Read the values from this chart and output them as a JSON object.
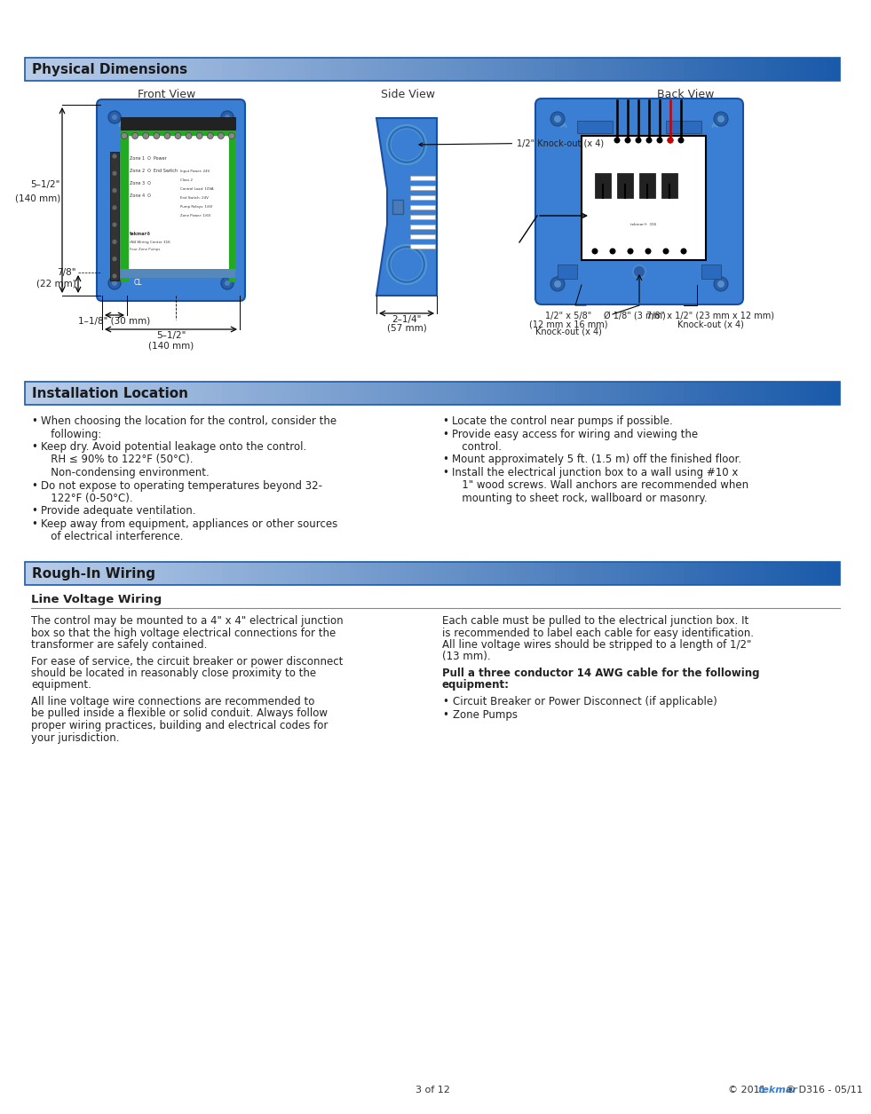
{
  "page_bg": "#ffffff",
  "header_gradient_left": "#b8cce8",
  "header_gradient_right": "#1a5aaa",
  "header_text_color": "#1a1a1a",
  "body_text_color": "#2a2a2a",
  "section_border_color": "#1a5aaa",
  "blue_device_color": "#3a7fd4",
  "blue_device_dark": "#1a4fa0",
  "blue_device_mid": "#2a6abf",
  "green_highlight": "#22aa22",
  "red_line_color": "#cc0000",
  "physical_dimensions_title": "Physical Dimensions",
  "front_view_label": "Front View",
  "side_view_label": "Side View",
  "back_view_label": "Back View",
  "installation_location_title": "Installation Location",
  "installation_bullets_left": [
    "When choosing the location for the control, consider the",
    "   following:",
    "Keep dry. Avoid potential leakage onto the control.",
    "   RH ≤ 90% to 122°F (50°C).",
    "   Non-condensing environment.",
    "Do not expose to operating temperatures beyond 32-",
    "   122°F (0-50°C).",
    "Provide adequate ventilation.",
    "Keep away from equipment, appliances or other sources",
    "   of electrical interference."
  ],
  "installation_bullets_left_markers": [
    true,
    false,
    true,
    false,
    false,
    true,
    false,
    true,
    true,
    false
  ],
  "installation_bullets_right": [
    "Locate the control near pumps if possible.",
    "Provide easy access for wiring and viewing the",
    "   control.",
    "Mount approximately 5 ft. (1.5 m) off the finished floor.",
    "Install the electrical junction box to a wall using #10 x",
    "   1\" wood screws. Wall anchors are recommended when",
    "   mounting to sheet rock, wallboard or masonry."
  ],
  "installation_bullets_right_markers": [
    true,
    true,
    false,
    true,
    true,
    false,
    false
  ],
  "rough_in_wiring_title": "Rough-In Wiring",
  "line_voltage_wiring_title": "Line Voltage Wiring",
  "line_voltage_left_p1": [
    "The control may be mounted to a 4\" x 4\" electrical junction",
    "box so that the high voltage electrical connections for the",
    "transformer are safely contained."
  ],
  "line_voltage_left_p2": [
    "For ease of service, the circuit breaker or power disconnect",
    "should be located in reasonably close proximity to the",
    "equipment."
  ],
  "line_voltage_left_p3": [
    "All line voltage wire connections are recommended to",
    "be pulled inside a flexible or solid conduit. Always follow",
    "proper wiring practices, building and electrical codes for",
    "your jurisdiction."
  ],
  "line_voltage_right_p1": [
    "Each cable must be pulled to the electrical junction box. It",
    "is recommended to label each cable for easy identification.",
    "All line voltage wires should be stripped to a length of 1/2\"",
    "(13 mm)."
  ],
  "line_voltage_right_bold_lines": [
    "Pull a three conductor 14 AWG cable for the following",
    "equipment:"
  ],
  "line_voltage_right_bullets": [
    "Circuit Breaker or Power Disconnect (if applicable)",
    "Zone Pumps"
  ],
  "footer_page": "3 of 12",
  "footer_copyright_pre": "© 2011 ",
  "footer_tekmar": "tekmar",
  "footer_copyright_post": "® D316 - 05/11",
  "dim_5_5_2_line1": "5–1/2\"",
  "dim_5_5_2_line2": "(140 mm)",
  "dim_7_8_line1": "7/8\"",
  "dim_7_8_line2": "(22 mm)",
  "dim_cl": "CL",
  "dim_1_1_8": "1–1/8\" (30 mm)",
  "dim_5_1_2_line1": "5–1/2\"",
  "dim_5_1_2_line2": "(140 mm)",
  "dim_side_line1": "2–1/4\"",
  "dim_side_line2": "(57 mm)",
  "dim_knockout_half": "1/2\" Knock-out (x 4)",
  "dim_back_ko1_line1": "1/2\" x 5/8\"",
  "dim_back_ko1_line2": "(12 mm x 16 mm)",
  "dim_back_ko1_line3": "Knock-out (x 4)",
  "dim_back_dia": "Ø 1/8\" (3 mm)",
  "dim_back_ko2_line1": "7/8\" x 1/2\" (23 mm x 12 mm)",
  "dim_back_ko2_line2": "Knock-out (x 4)"
}
